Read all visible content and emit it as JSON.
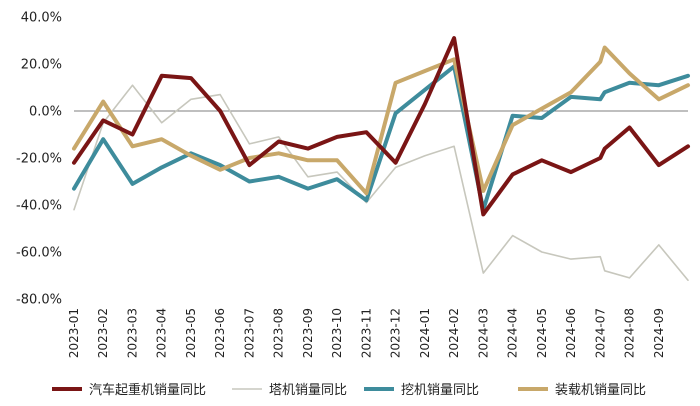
{
  "chart_data": {
    "type": "line",
    "title": "",
    "xlabel": "",
    "ylabel": "",
    "ylim": [
      -80,
      40
    ],
    "y_ticks": [
      "40.0%",
      "20.0%",
      "0.0%",
      "-20.0%",
      "-40.0%",
      "-60.0%",
      "-80.0%"
    ],
    "y_tick_values": [
      40,
      20,
      0,
      -20,
      -40,
      -60,
      -80
    ],
    "categories": [
      "2023-01",
      "2023-02",
      "2023-03",
      "2023-04",
      "2023-05",
      "2023-06",
      "2023-07",
      "2023-08",
      "2023-09",
      "2023-10",
      "2023-11",
      "2023-12",
      "2024-01",
      "2024-02",
      "2024-03",
      "2024-04",
      "2024-05",
      "2024-06",
      "2024-07",
      "2024-08",
      "2024-09"
    ],
    "grid": false,
    "legend_position": "bottom",
    "series": [
      {
        "name": "汽车起重机销量同比",
        "color": "#7a1515",
        "x": [
          0,
          1,
          2,
          3,
          4,
          5,
          6,
          7,
          8,
          9,
          10,
          11,
          12,
          13,
          14,
          15,
          16,
          17,
          18,
          18.15,
          19,
          20,
          21
        ],
        "values": [
          -22,
          -4,
          -10,
          15,
          14,
          0,
          -23,
          -13,
          -16,
          -11,
          -9,
          -22,
          3,
          31,
          -44,
          -27,
          -21,
          -26,
          -20,
          -16,
          -7,
          -23,
          -15
        ]
      },
      {
        "name": "塔机销量同比",
        "color": "#c7c7bd",
        "x": [
          0,
          1,
          2,
          3,
          4,
          5,
          6,
          7,
          8,
          9,
          10,
          11,
          12,
          13,
          14,
          15,
          16,
          17,
          18,
          18.15,
          19,
          20,
          21
        ],
        "values": [
          -42,
          -5,
          11,
          -5,
          5,
          7,
          -14,
          -11,
          -28,
          -26,
          -39,
          -24,
          -19,
          -15,
          -69,
          -53,
          -60,
          -63,
          -62,
          -68,
          -71,
          -57,
          -72
        ]
      },
      {
        "name": "挖机销量同比",
        "color": "#3e8c9c",
        "x": [
          0,
          1,
          2,
          3,
          4,
          5,
          6,
          7,
          8,
          9,
          10,
          11,
          12,
          13,
          14,
          15,
          16,
          17,
          18,
          18.15,
          19,
          20,
          21
        ],
        "values": [
          -33,
          -12,
          -31,
          -24,
          -18,
          -23,
          -30,
          -28,
          -33,
          -29,
          -38,
          -1,
          9,
          19,
          -42,
          -2,
          -3,
          6,
          5,
          8,
          12,
          11,
          15
        ]
      },
      {
        "name": "装载机销量同比",
        "color": "#c8a86a",
        "x": [
          0,
          1,
          2,
          3,
          4,
          5,
          6,
          7,
          8,
          9,
          10,
          11,
          12,
          13,
          14,
          15,
          16,
          17,
          18,
          18.15,
          19,
          20,
          21
        ],
        "values": [
          -16,
          4,
          -15,
          -12,
          -19,
          -25,
          -20,
          -18,
          -21,
          -21,
          -35,
          12,
          17,
          22,
          -34,
          -6,
          1,
          8,
          21,
          27,
          16,
          5,
          11
        ]
      }
    ]
  }
}
